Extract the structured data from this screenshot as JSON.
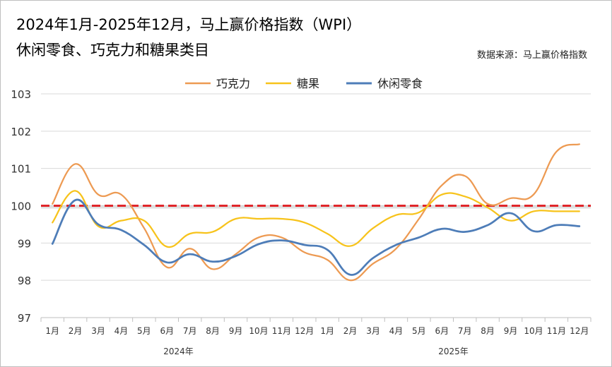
{
  "title_line1": "2024年1月-2025年12月，马上赢价格指数（WPI）",
  "title_line2": "休闲零食、巧克力和糖果类目",
  "source": "数据来源：马上赢价格指数",
  "chart_data": {
    "type": "line",
    "categories": [
      "1月",
      "2月",
      "3月",
      "4月",
      "5月",
      "6月",
      "7月",
      "8月",
      "9月",
      "10月",
      "11月",
      "12月",
      "1月",
      "2月",
      "3月",
      "4月",
      "5月",
      "6月",
      "7月",
      "8月",
      "9月",
      "10月",
      "11月",
      "12月"
    ],
    "year_labels": [
      {
        "label": "2024年",
        "start": 0,
        "end": 11
      },
      {
        "label": "2025年",
        "start": 12,
        "end": 23
      }
    ],
    "ylim": [
      97,
      103
    ],
    "yticks": [
      97,
      98,
      99,
      100,
      101,
      102,
      103
    ],
    "reference_line": {
      "value": 100,
      "color": "#e0262a"
    },
    "legend_position": "top",
    "series": [
      {
        "name": "巧克力",
        "color": "#ed9a52",
        "values": [
          100.05,
          101.12,
          100.3,
          100.3,
          99.4,
          98.35,
          98.85,
          98.3,
          98.7,
          99.15,
          99.15,
          98.75,
          98.55,
          98.0,
          98.45,
          98.85,
          99.65,
          100.55,
          100.8,
          100.05,
          100.2,
          100.3,
          101.45,
          101.65
        ]
      },
      {
        "name": "糖果",
        "color": "#f7c31b",
        "values": [
          99.55,
          100.4,
          99.45,
          99.6,
          99.6,
          98.9,
          99.25,
          99.3,
          99.65,
          99.65,
          99.65,
          99.55,
          99.25,
          98.92,
          99.4,
          99.75,
          99.82,
          100.3,
          100.25,
          99.95,
          99.6,
          99.85,
          99.85,
          99.85
        ]
      },
      {
        "name": "休闲零食",
        "color": "#4e7db8",
        "values": [
          98.98,
          100.15,
          99.5,
          99.35,
          98.95,
          98.48,
          98.7,
          98.5,
          98.65,
          98.97,
          99.07,
          98.95,
          98.82,
          98.15,
          98.6,
          98.95,
          99.15,
          99.38,
          99.3,
          99.48,
          99.8,
          99.32,
          99.48,
          99.45
        ]
      }
    ]
  }
}
